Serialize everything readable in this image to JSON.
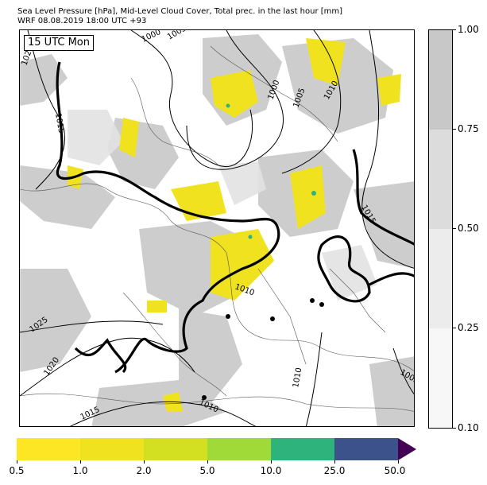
{
  "title": {
    "line1": "Sea Level Pressure [hPa], Mid-Level Cloud Cover, Total prec. in the last hour [mm]",
    "line2": "WRF 08.08.2019 18:00 UTC +93"
  },
  "map": {
    "time_label": "15 UTC Mon",
    "isobar_labels": [
      "1020",
      "1000",
      "1005",
      "1015",
      "1000",
      "1005",
      "1010",
      "1015",
      "1010",
      "1025",
      "1020",
      "1010",
      "1005",
      "1015",
      "1010"
    ]
  },
  "cloud_colorbar": {
    "ticks": [
      "1.00",
      "0.75",
      "0.50",
      "0.25",
      "0.10"
    ],
    "colors": [
      "#c8c8c8",
      "#dcdcdc",
      "#ececec",
      "#f7f7f7"
    ]
  },
  "precip_colorbar": {
    "ticks": [
      "0.5",
      "1.0",
      "2.0",
      "5.0",
      "10.0",
      "25.0",
      "50.0"
    ],
    "colors": [
      "#fde725",
      "#f0e21f",
      "#d2e021",
      "#a0da39",
      "#2eb37c",
      "#3b528b",
      "#440154"
    ]
  }
}
